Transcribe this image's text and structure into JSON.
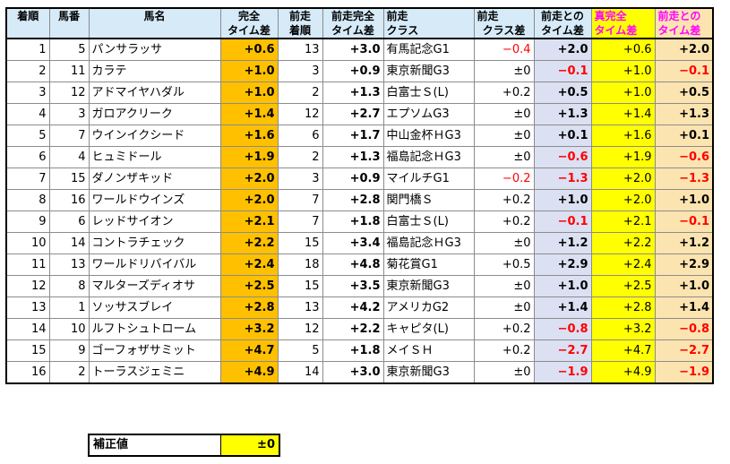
{
  "headers": {
    "rank": [
      "着順",
      ""
    ],
    "num": [
      "馬番",
      ""
    ],
    "name": [
      "馬名",
      ""
    ],
    "kanzen": [
      "完全",
      "タイム差"
    ],
    "prev_rank": [
      "前走",
      "着順"
    ],
    "prev_kanzen": [
      "前走完全",
      "タイム差"
    ],
    "prev_class": [
      "前走",
      "クラス"
    ],
    "class_diff": [
      "前走",
      "クラス差"
    ],
    "prev_time": [
      "前走との",
      "タイム差"
    ],
    "shin_kanzen": [
      "真完全",
      "タイム差"
    ],
    "shin_prev": [
      "前走との",
      "タイム差"
    ]
  },
  "rows": [
    {
      "rank": "1",
      "num": "5",
      "name": "パンサラッサ",
      "kanzen": "+0.6",
      "prev_rank": "13",
      "prev_kanzen": "+3.0",
      "prev_class": "有馬記念G1",
      "class_diff": "−0.4",
      "class_neg": true,
      "prev_time": "+2.0",
      "prev_time_neg": false,
      "shin": "+0.6",
      "shin_prev": "+2.0",
      "shin_prev_neg": false
    },
    {
      "rank": "2",
      "num": "11",
      "name": "カラテ",
      "kanzen": "+1.0",
      "prev_rank": "3",
      "prev_kanzen": "+0.9",
      "prev_class": "東京新聞G3",
      "class_diff": "±0",
      "class_neg": false,
      "prev_time": "−0.1",
      "prev_time_neg": true,
      "shin": "+1.0",
      "shin_prev": "−0.1",
      "shin_prev_neg": true
    },
    {
      "rank": "3",
      "num": "12",
      "name": "アドマイヤハダル",
      "kanzen": "+1.0",
      "prev_rank": "2",
      "prev_kanzen": "+1.3",
      "prev_class": "白富士Ｓ(L)",
      "class_diff": "+0.2",
      "class_neg": false,
      "prev_time": "+0.5",
      "prev_time_neg": false,
      "shin": "+1.0",
      "shin_prev": "+0.5",
      "shin_prev_neg": false
    },
    {
      "rank": "4",
      "num": "3",
      "name": "ガロアクリーク",
      "kanzen": "+1.4",
      "prev_rank": "12",
      "prev_kanzen": "+2.7",
      "prev_class": "エプソムG3",
      "class_diff": "±0",
      "class_neg": false,
      "prev_time": "+1.3",
      "prev_time_neg": false,
      "shin": "+1.4",
      "shin_prev": "+1.3",
      "shin_prev_neg": false
    },
    {
      "rank": "5",
      "num": "7",
      "name": "ウインイクシード",
      "kanzen": "+1.6",
      "prev_rank": "6",
      "prev_kanzen": "+1.7",
      "prev_class": "中山金杯ＨG3",
      "class_diff": "±0",
      "class_neg": false,
      "prev_time": "+0.1",
      "prev_time_neg": false,
      "shin": "+1.6",
      "shin_prev": "+0.1",
      "shin_prev_neg": false
    },
    {
      "rank": "6",
      "num": "4",
      "name": "ヒュミドール",
      "kanzen": "+1.9",
      "prev_rank": "2",
      "prev_kanzen": "+1.3",
      "prev_class": "福島記念ＨG3",
      "class_diff": "±0",
      "class_neg": false,
      "prev_time": "−0.6",
      "prev_time_neg": true,
      "shin": "+1.9",
      "shin_prev": "−0.6",
      "shin_prev_neg": true
    },
    {
      "rank": "7",
      "num": "15",
      "name": "ダノンザキッド",
      "kanzen": "+2.0",
      "prev_rank": "3",
      "prev_kanzen": "+0.9",
      "prev_class": "マイルチG1",
      "class_diff": "−0.2",
      "class_neg": true,
      "prev_time": "−1.3",
      "prev_time_neg": true,
      "shin": "+2.0",
      "shin_prev": "−1.3",
      "shin_prev_neg": true
    },
    {
      "rank": "8",
      "num": "16",
      "name": "ワールドウインズ",
      "kanzen": "+2.0",
      "prev_rank": "7",
      "prev_kanzen": "+2.8",
      "prev_class": "関門橋Ｓ",
      "class_diff": "+0.2",
      "class_neg": false,
      "prev_time": "+1.0",
      "prev_time_neg": false,
      "shin": "+2.0",
      "shin_prev": "+1.0",
      "shin_prev_neg": false
    },
    {
      "rank": "9",
      "num": "6",
      "name": "レッドサイオン",
      "kanzen": "+2.1",
      "prev_rank": "7",
      "prev_kanzen": "+1.8",
      "prev_class": "白富士Ｓ(L)",
      "class_diff": "+0.2",
      "class_neg": false,
      "prev_time": "−0.1",
      "prev_time_neg": true,
      "shin": "+2.1",
      "shin_prev": "−0.1",
      "shin_prev_neg": true
    },
    {
      "rank": "10",
      "num": "14",
      "name": "コントラチェック",
      "kanzen": "+2.2",
      "prev_rank": "15",
      "prev_kanzen": "+3.4",
      "prev_class": "福島記念ＨG3",
      "class_diff": "±0",
      "class_neg": false,
      "prev_time": "+1.2",
      "prev_time_neg": false,
      "shin": "+2.2",
      "shin_prev": "+1.2",
      "shin_prev_neg": false
    },
    {
      "rank": "11",
      "num": "13",
      "name": "ワールドリバイバル",
      "kanzen": "+2.4",
      "prev_rank": "18",
      "prev_kanzen": "+4.8",
      "prev_class": "菊花賞G1",
      "class_diff": "+0.5",
      "class_neg": false,
      "prev_time": "+2.9",
      "prev_time_neg": false,
      "shin": "+2.4",
      "shin_prev": "+2.9",
      "shin_prev_neg": false
    },
    {
      "rank": "12",
      "num": "8",
      "name": "マルターズディオサ",
      "kanzen": "+2.5",
      "prev_rank": "15",
      "prev_kanzen": "+3.5",
      "prev_class": "東京新聞G3",
      "class_diff": "±0",
      "class_neg": false,
      "prev_time": "+1.0",
      "prev_time_neg": false,
      "shin": "+2.5",
      "shin_prev": "+1.0",
      "shin_prev_neg": false
    },
    {
      "rank": "13",
      "num": "1",
      "name": "ソッサスブレイ",
      "kanzen": "+2.8",
      "prev_rank": "13",
      "prev_kanzen": "+4.2",
      "prev_class": "アメリカG2",
      "class_diff": "±0",
      "class_neg": false,
      "prev_time": "+1.4",
      "prev_time_neg": false,
      "shin": "+2.8",
      "shin_prev": "+1.4",
      "shin_prev_neg": false
    },
    {
      "rank": "14",
      "num": "10",
      "name": "ルフトシュトローム",
      "kanzen": "+3.2",
      "prev_rank": "12",
      "prev_kanzen": "+2.2",
      "prev_class": "キャピタ(L)",
      "class_diff": "+0.2",
      "class_neg": false,
      "prev_time": "−0.8",
      "prev_time_neg": true,
      "shin": "+3.2",
      "shin_prev": "−0.8",
      "shin_prev_neg": true
    },
    {
      "rank": "15",
      "num": "9",
      "name": "ゴーフォザサミット",
      "kanzen": "+4.7",
      "prev_rank": "5",
      "prev_kanzen": "+1.8",
      "prev_class": "メイＳＨ",
      "class_diff": "+0.2",
      "class_neg": false,
      "prev_time": "−2.7",
      "prev_time_neg": true,
      "shin": "+4.7",
      "shin_prev": "−2.7",
      "shin_prev_neg": true
    },
    {
      "rank": "16",
      "num": "2",
      "name": "トーラスジェミニ",
      "kanzen": "+4.9",
      "prev_rank": "14",
      "prev_kanzen": "+3.0",
      "prev_class": "東京新聞G3",
      "class_diff": "±0",
      "class_neg": false,
      "prev_time": "−1.9",
      "prev_time_neg": true,
      "shin": "+4.9",
      "shin_prev": "−1.9",
      "shin_prev_neg": true
    }
  ],
  "correction": {
    "label": "補正値",
    "value": "±0"
  },
  "colors": {
    "header_bg": "#d6eaf8",
    "kanzen_bg": "#ffc000",
    "prev_time_bg": "#dbe0f2",
    "shin_bg": "#ffff00",
    "shin_prev_bg": "#fce4b0",
    "negative": "#ff0000",
    "header_pink": "#ff00ff"
  }
}
